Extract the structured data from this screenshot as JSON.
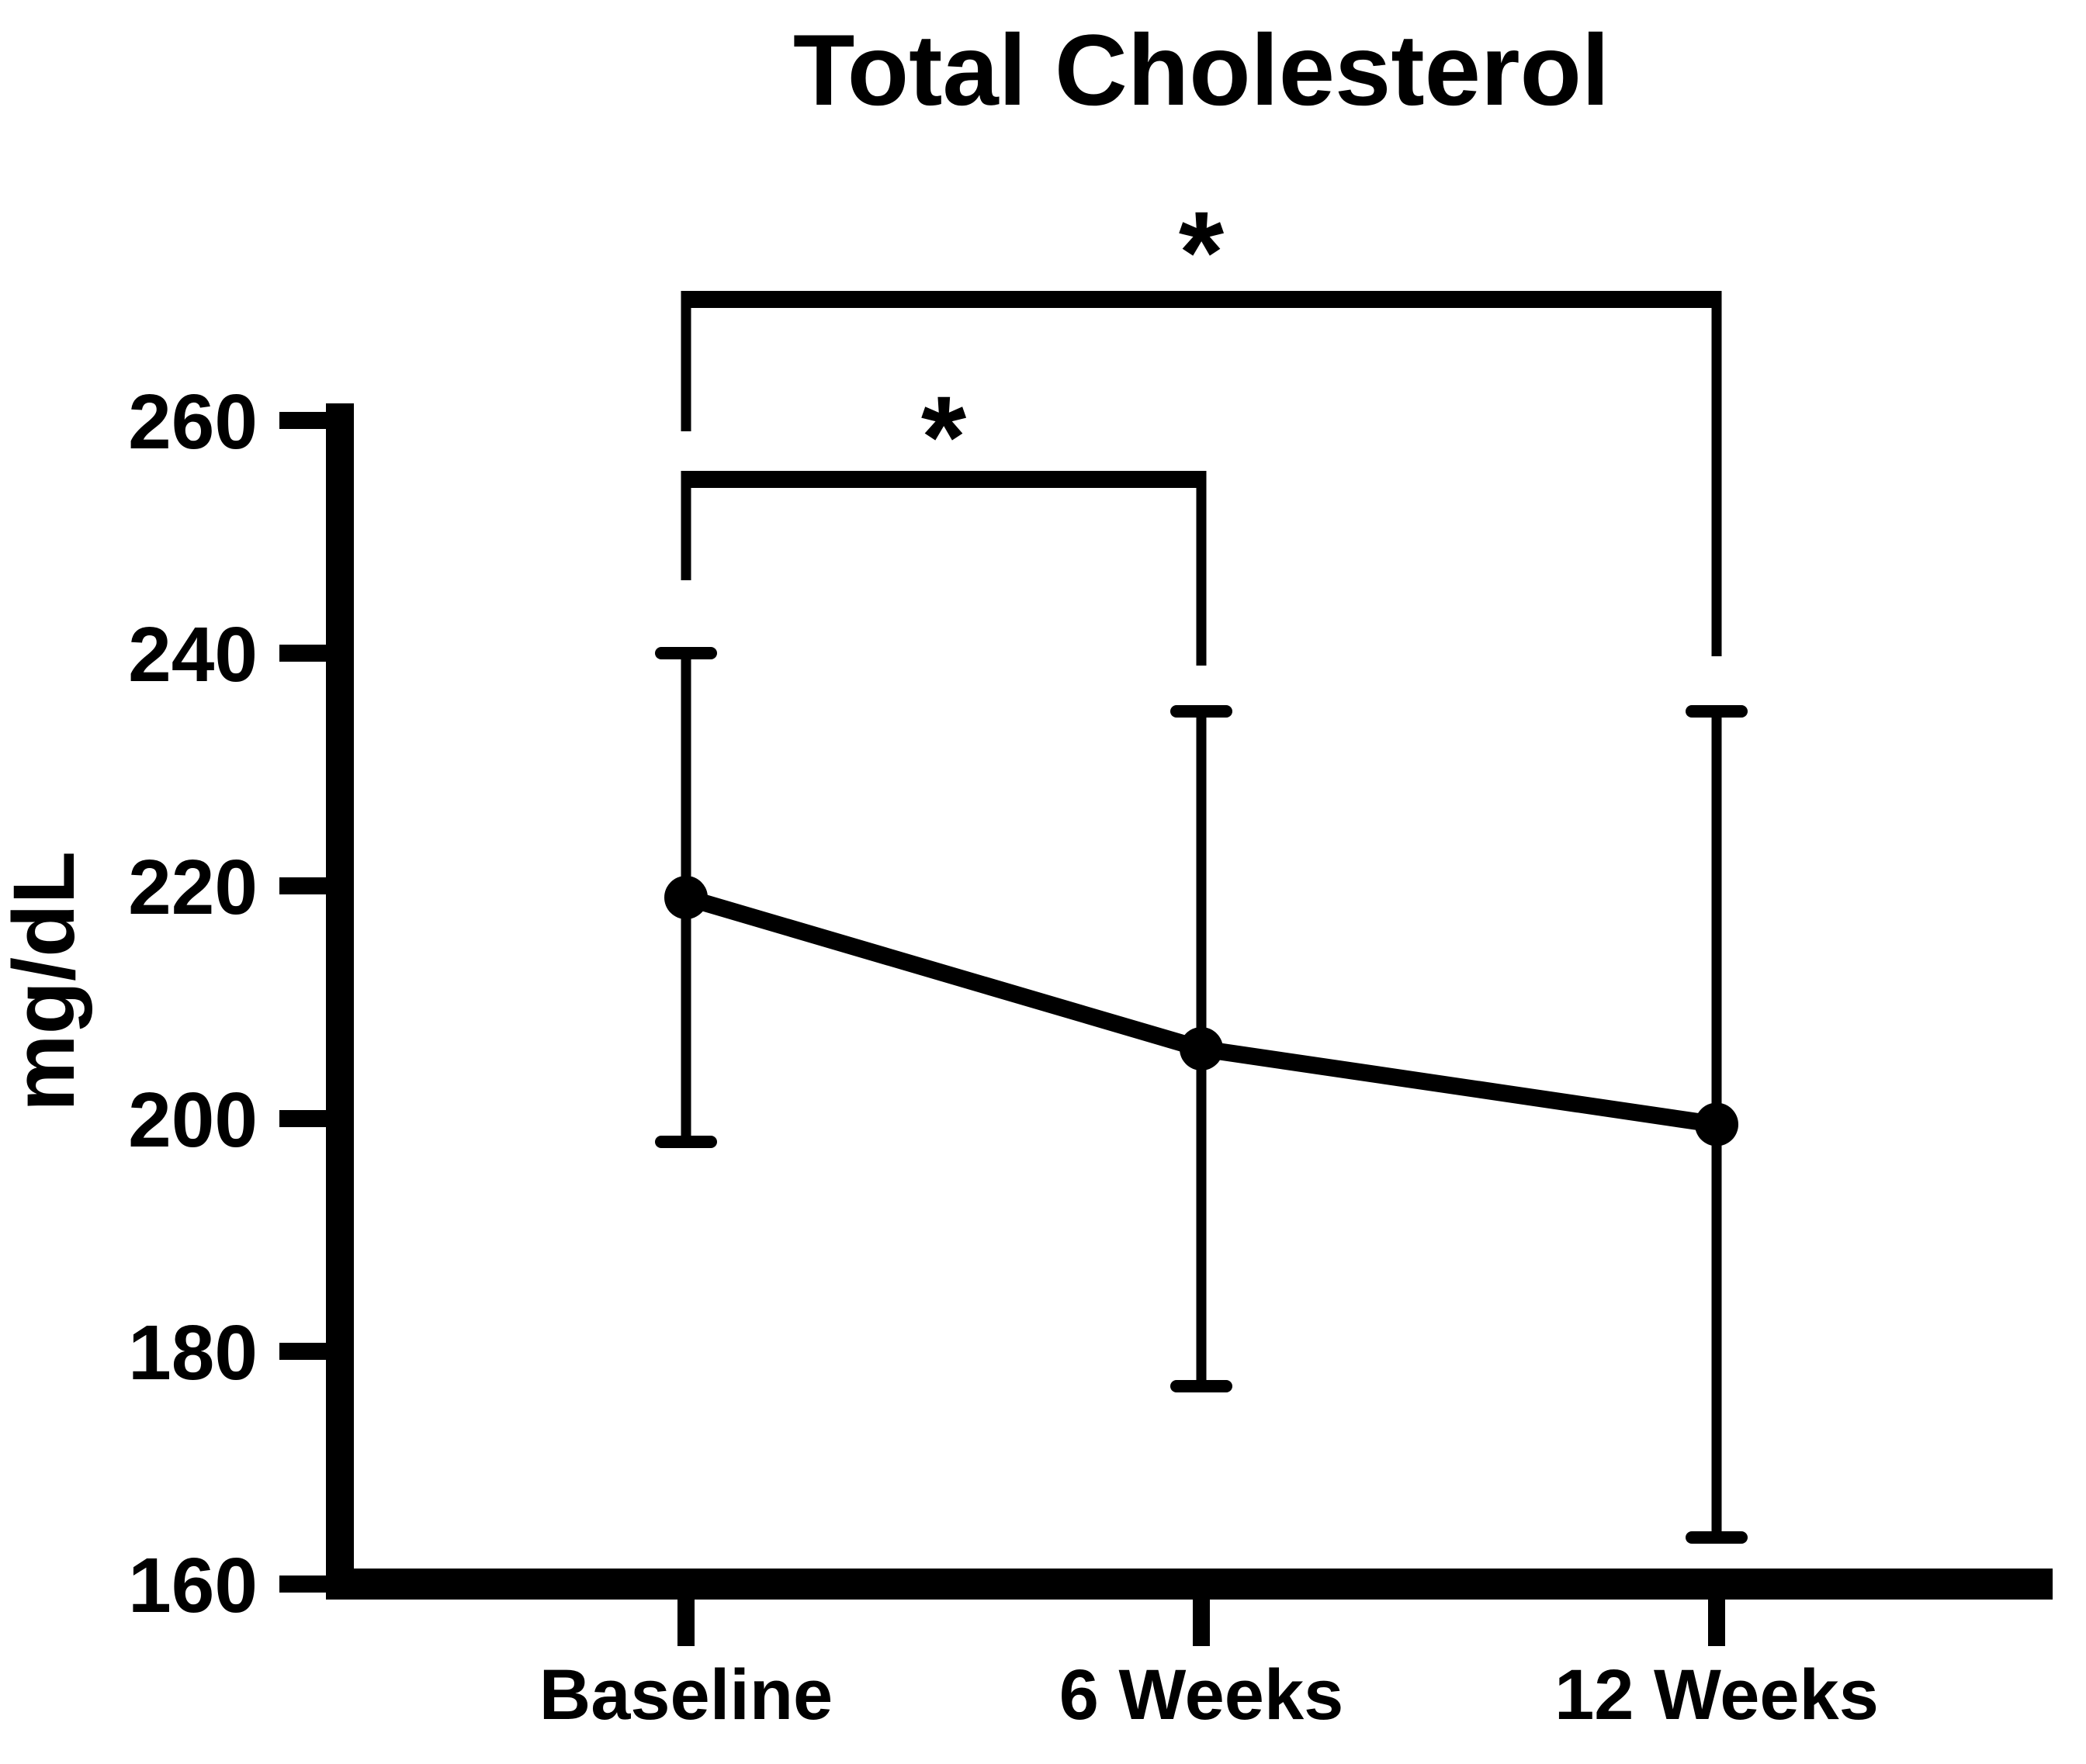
{
  "chart_data": {
    "type": "line",
    "title": "Total Cholesterol",
    "ylabel": "mg/dL",
    "xlabel": "",
    "categories": [
      "Baseline",
      "6 Weeks",
      "12 Weeks"
    ],
    "series": [
      {
        "name": "Total Cholesterol",
        "values": [
          219,
          206,
          199.5
        ],
        "error_upper": [
          240,
          235,
          235
        ],
        "error_lower": [
          198,
          177,
          164
        ]
      }
    ],
    "points": [
      {
        "category": "Baseline",
        "mean": 219,
        "upper": 240,
        "lower": 198
      },
      {
        "category": "6 Weeks",
        "mean": 206,
        "upper": 235,
        "lower": 177
      },
      {
        "category": "12 Weeks",
        "mean": 199.5,
        "upper": 235,
        "lower": 164
      }
    ],
    "ylim": [
      160,
      260
    ],
    "yticks": [
      160,
      180,
      200,
      220,
      240,
      260
    ],
    "ytick_labels": [
      "160",
      "180",
      "200",
      "220",
      "240",
      "260"
    ],
    "grid": "off",
    "legend": "none",
    "marker": "filled-circle",
    "line_color": "#000000",
    "background_color": "#ffffff",
    "significance": [
      {
        "from": "Baseline",
        "to": "6 Weeks",
        "label": "*"
      },
      {
        "from": "Baseline",
        "to": "12 Weeks",
        "label": "*"
      }
    ]
  }
}
